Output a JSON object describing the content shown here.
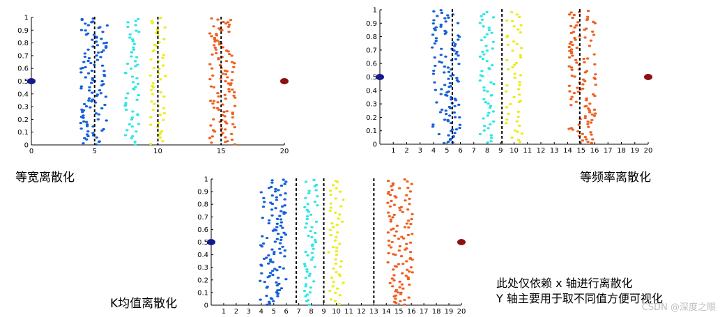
{
  "captions": {
    "equal_width": "等宽离散化",
    "equal_freq": "等频率离散化",
    "kmeans": "K均值离散化"
  },
  "note": {
    "line1": "此处仅依赖 x 轴进行离散化",
    "line2": "Y 轴主要用于取不同值方便可视化"
  },
  "watermark": "CSDN @深度之眼",
  "colors": {
    "blue": "#1560d8",
    "cyan": "#2ee6e6",
    "yellow": "#ecec1a",
    "orange": "#f06020",
    "navy": "#141a8c",
    "darkred": "#8c1010"
  },
  "chart_data": [
    {
      "type": "scatter",
      "title": "",
      "caption": "等宽离散化",
      "xlim": [
        0,
        20
      ],
      "ylim": [
        0,
        1
      ],
      "xticks": [
        0,
        5,
        10,
        15,
        20
      ],
      "yticks": [
        "0",
        "0.1",
        "0.2",
        "0.3",
        "0.4",
        "0.5",
        "0.6",
        "0.7",
        "0.8",
        "0.9",
        "1"
      ],
      "split_lines": [
        5,
        10,
        15
      ],
      "series": [
        {
          "color": "blue",
          "x_range": [
            3.9,
            6.0
          ],
          "count": 110
        },
        {
          "color": "cyan",
          "x_range": [
            7.4,
            8.5
          ],
          "count": 55
        },
        {
          "color": "yellow",
          "x_range": [
            9.4,
            10.6
          ],
          "count": 50
        },
        {
          "color": "orange",
          "x_range": [
            14.1,
            16.1
          ],
          "count": 110
        }
      ],
      "endpoints": [
        {
          "x": 0,
          "y": 0.5,
          "color": "navy"
        },
        {
          "x": 20,
          "y": 0.5,
          "color": "darkred"
        }
      ]
    },
    {
      "type": "scatter",
      "title": "",
      "caption": "等频率离散化",
      "xlim": [
        0,
        20
      ],
      "ylim": [
        0,
        1
      ],
      "xticks": [
        1,
        2,
        3,
        4,
        5,
        6,
        7,
        8,
        9,
        10,
        11,
        12,
        13,
        14,
        15,
        16,
        17,
        18,
        19,
        20
      ],
      "yticks": [
        "0",
        "0.1",
        "0.2",
        "0.3",
        "0.4",
        "0.5",
        "0.6",
        "0.7",
        "0.8",
        "0.9",
        "1"
      ],
      "split_lines": [
        5.4,
        9.1,
        14.9
      ],
      "series": [
        {
          "color": "blue",
          "x_range": [
            3.9,
            6.0
          ],
          "count": 110
        },
        {
          "color": "cyan",
          "x_range": [
            7.4,
            8.5
          ],
          "count": 55
        },
        {
          "color": "yellow",
          "x_range": [
            9.4,
            10.6
          ],
          "count": 50
        },
        {
          "color": "orange",
          "x_range": [
            14.1,
            16.1
          ],
          "count": 110
        }
      ],
      "endpoints": [
        {
          "x": 0,
          "y": 0.5,
          "color": "navy"
        },
        {
          "x": 20,
          "y": 0.5,
          "color": "darkred"
        }
      ]
    },
    {
      "type": "scatter",
      "title": "",
      "caption": "K均值离散化",
      "xlim": [
        0,
        20
      ],
      "ylim": [
        0,
        1
      ],
      "xticks": [
        1,
        2,
        3,
        4,
        5,
        6,
        7,
        8,
        9,
        10,
        11,
        12,
        13,
        14,
        15,
        16,
        17,
        18,
        19,
        20
      ],
      "yticks": [
        "0",
        "0.1",
        "0.2",
        "0.3",
        "0.4",
        "0.5",
        "0.6",
        "0.7",
        "0.8",
        "0.9",
        "1"
      ],
      "split_lines": [
        6.8,
        9.0,
        13.0
      ],
      "series": [
        {
          "color": "blue",
          "x_range": [
            3.9,
            6.0
          ],
          "count": 110
        },
        {
          "color": "cyan",
          "x_range": [
            7.4,
            8.5
          ],
          "count": 55
        },
        {
          "color": "yellow",
          "x_range": [
            9.4,
            10.6
          ],
          "count": 50
        },
        {
          "color": "orange",
          "x_range": [
            14.1,
            16.1
          ],
          "count": 110
        }
      ],
      "endpoints": [
        {
          "x": 0,
          "y": 0.5,
          "color": "navy"
        },
        {
          "x": 20,
          "y": 0.5,
          "color": "darkred"
        }
      ]
    }
  ]
}
